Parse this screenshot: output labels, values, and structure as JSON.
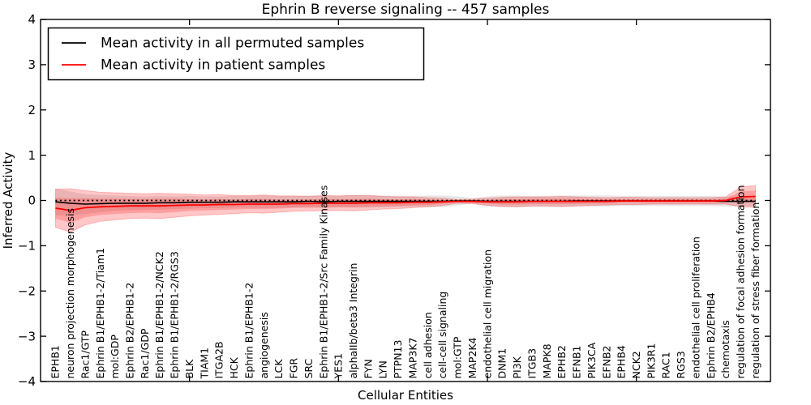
{
  "chart_data": {
    "type": "line",
    "title": "Ephrin B reverse signaling -- 457 samples",
    "xlabel": "Cellular Entities",
    "ylabel": "Inferred Activity",
    "ylim": [
      -4,
      4
    ],
    "ytick_values": [
      4,
      3,
      2,
      1,
      0,
      -1,
      -2,
      -3,
      -4
    ],
    "ytick_labels": [
      "4",
      "3",
      "2",
      "1",
      "0",
      "−1",
      "−2",
      "−3",
      "−4"
    ],
    "xtick_positions": [
      10,
      20,
      30,
      40
    ],
    "grid": false,
    "legend_position": "upper left",
    "zero_reference_line": 0,
    "colors": {
      "permuted_line": "#000000",
      "patient_line": "#ff0000",
      "permuted_band": "#00000019",
      "patient_band_outer": "#ff000038",
      "patient_band_inner": "#ff000033",
      "zero_line": "#000000",
      "frame": "#000000"
    },
    "categories": [
      "EPHB1",
      "neuron projection morphogenesis",
      "Rac1/GTP",
      "Ephrin B1/EPHB1-2/Tiam1",
      "mol:GDP",
      "Ephrin B2/EPHB1-2",
      "Rac1/GDP",
      "Ephrin B1/EPHB1-2/NCK2",
      "Ephrin B1/EPHB1-2/RGS3",
      "BLK",
      "TIAM1",
      "ITGA2B",
      "HCK",
      "Ephrin B1/EPHB1-2",
      "angiogenesis",
      "LCK",
      "FGR",
      "SRC",
      "Ephrin B1/EPHB1-2/Src Family Kinases",
      "YES1",
      "alphaIIb/beta3 Integrin",
      "FYN",
      "LYN",
      "PTPN13",
      "MAP3K7",
      "cell adhesion",
      "cell-cell signaling",
      "mol:GTP",
      "MAP2K4",
      "endothelial cell migration",
      "DNM1",
      "PI3K",
      "ITGB3",
      "MAPK8",
      "EPHB2",
      "EFNB1",
      "PIK3CA",
      "EFNB2",
      "EPHB4",
      "NCK2",
      "PIK3R1",
      "RAC1",
      "RGS3",
      "endothelial cell proliferation",
      "Ephrin B2/EPHB4",
      "chemotaxis",
      "regulation of focal adhesion formation",
      "regulation of stress fiber formation"
    ],
    "series": [
      {
        "name": "Mean activity in all permuted samples",
        "color": "#000000",
        "values": [
          -0.03,
          -0.06,
          -0.08,
          -0.07,
          -0.06,
          -0.06,
          -0.06,
          -0.05,
          -0.05,
          -0.04,
          -0.04,
          -0.04,
          -0.03,
          -0.03,
          -0.03,
          -0.03,
          -0.03,
          -0.02,
          -0.03,
          -0.02,
          -0.02,
          -0.02,
          -0.02,
          -0.02,
          -0.02,
          -0.02,
          -0.02,
          -0.01,
          -0.01,
          -0.02,
          -0.02,
          -0.02,
          -0.02,
          -0.02,
          -0.02,
          -0.01,
          -0.01,
          -0.01,
          -0.01,
          -0.01,
          -0.01,
          -0.01,
          -0.01,
          -0.01,
          -0.01,
          -0.02,
          -0.02,
          -0.02
        ],
        "band_halfwidth": [
          0.3,
          0.26,
          0.22,
          0.19,
          0.17,
          0.16,
          0.15,
          0.15,
          0.14,
          0.14,
          0.13,
          0.13,
          0.13,
          0.13,
          0.14,
          0.13,
          0.13,
          0.13,
          0.14,
          0.13,
          0.14,
          0.14,
          0.13,
          0.13,
          0.12,
          0.13,
          0.13,
          0.1,
          0.06,
          0.11,
          0.13,
          0.13,
          0.12,
          0.12,
          0.13,
          0.12,
          0.12,
          0.12,
          0.11,
          0.11,
          0.11,
          0.11,
          0.11,
          0.11,
          0.11,
          0.11,
          0.11,
          0.11
        ]
      },
      {
        "name": "Mean activity in patient samples",
        "color": "#ff0000",
        "values": [
          -0.17,
          -0.22,
          -0.16,
          -0.14,
          -0.13,
          -0.12,
          -0.12,
          -0.12,
          -0.11,
          -0.1,
          -0.1,
          -0.09,
          -0.09,
          -0.08,
          -0.08,
          -0.08,
          -0.07,
          -0.07,
          -0.06,
          -0.06,
          -0.06,
          -0.05,
          -0.05,
          -0.05,
          -0.04,
          -0.04,
          -0.03,
          -0.02,
          -0.02,
          -0.03,
          -0.03,
          -0.03,
          -0.02,
          -0.02,
          -0.02,
          -0.02,
          -0.02,
          -0.02,
          -0.01,
          -0.01,
          -0.01,
          -0.01,
          -0.01,
          -0.01,
          -0.01,
          0.0,
          0.08,
          0.09
        ],
        "band_outer_halfwidth": [
          0.42,
          0.48,
          0.38,
          0.32,
          0.3,
          0.28,
          0.27,
          0.28,
          0.26,
          0.24,
          0.22,
          0.22,
          0.2,
          0.19,
          0.2,
          0.18,
          0.17,
          0.16,
          0.17,
          0.16,
          0.17,
          0.16,
          0.14,
          0.13,
          0.12,
          0.1,
          0.08,
          0.04,
          0.05,
          0.08,
          0.1,
          0.11,
          0.1,
          0.1,
          0.11,
          0.1,
          0.09,
          0.08,
          0.08,
          0.08,
          0.07,
          0.07,
          0.07,
          0.07,
          0.07,
          0.08,
          0.22,
          0.24
        ],
        "band_inner_halfwidth": [
          0.23,
          0.27,
          0.21,
          0.18,
          0.17,
          0.16,
          0.15,
          0.16,
          0.15,
          0.13,
          0.12,
          0.12,
          0.11,
          0.11,
          0.11,
          0.1,
          0.09,
          0.09,
          0.09,
          0.09,
          0.09,
          0.09,
          0.08,
          0.07,
          0.07,
          0.06,
          0.04,
          0.02,
          0.03,
          0.04,
          0.06,
          0.06,
          0.06,
          0.06,
          0.06,
          0.06,
          0.05,
          0.05,
          0.04,
          0.04,
          0.04,
          0.04,
          0.04,
          0.04,
          0.04,
          0.04,
          0.12,
          0.13
        ]
      }
    ]
  }
}
